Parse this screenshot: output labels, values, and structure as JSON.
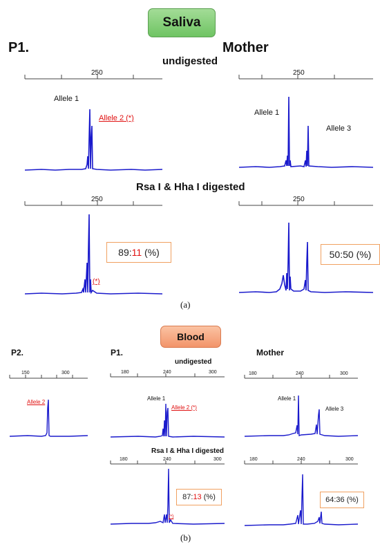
{
  "saliva": {
    "badge": "Saliva",
    "p1_label": "P1.",
    "mother_label": "Mother",
    "undigested_label": "undigested",
    "digested_label": "Rsa I & Hha I digested",
    "tick_250": "250",
    "allele1": "Allele 1",
    "allele2": "Allele 2 (*)",
    "allele3": "Allele 3",
    "star": "(*)",
    "ratio_p1": {
      "a": "89:",
      "b": "11",
      "c": " (%)"
    },
    "ratio_mother": "50:50 (%)",
    "caption": "(a)"
  },
  "blood": {
    "badge": "Blood",
    "p2_label": "P2.",
    "p1_label": "P1.",
    "mother_label": "Mother",
    "undigested_label": "undigested",
    "digested_label": "Rsa I & Hha I digested",
    "ticks_p2": [
      "150",
      "300"
    ],
    "ticks": [
      "180",
      "240",
      "300"
    ],
    "allele1": "Allele 1",
    "allele2": "Allele 2",
    "allele2_star": "Allele 2 (*)",
    "allele3": "Allele 3",
    "star": "(*)",
    "ratio_p1": {
      "a": "87:",
      "b": "13",
      "c": " (%)"
    },
    "ratio_mother": "64:36 (%)",
    "caption": "(b)"
  },
  "colors": {
    "trace": "#1a1acc",
    "accent_red": "#e01010",
    "box_border": "#f0a060"
  }
}
